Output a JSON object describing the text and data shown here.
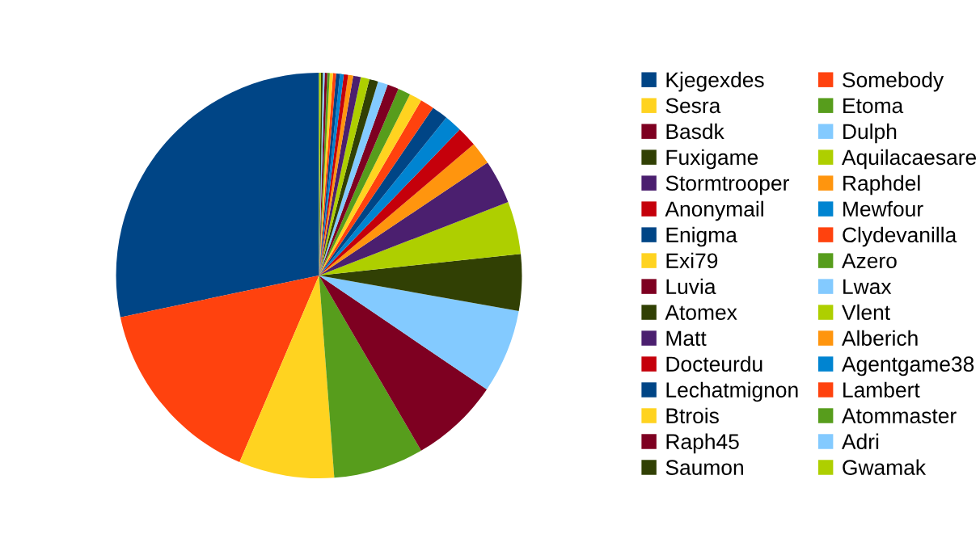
{
  "chart_data": {
    "type": "pie",
    "legend": "right",
    "categories": [
      "Kjegexdes",
      "Somebody",
      "Sesra",
      "Etoma",
      "Basdk",
      "Dulph",
      "Fuxigame",
      "Aquilacaesare",
      "Stormtrooper",
      "Raphdel",
      "Anonymail",
      "Mewfour",
      "Enigma",
      "Clydevanilla",
      "Exi79",
      "Azero",
      "Luvia",
      "Lwax",
      "Atomex",
      "Vlent",
      "Matt",
      "Alberich",
      "Docteurdu",
      "Agentgame38",
      "Lechatmignon",
      "Lambert",
      "Btrois",
      "Atommaster",
      "Raph45",
      "Adri",
      "Saumon",
      "Gwamak"
    ],
    "values": [
      28.3,
      15.3,
      7.6,
      7.2,
      7.1,
      6.7,
      4.5,
      4.2,
      3.5,
      1.8,
      1.6,
      1.4,
      1.3,
      1.1,
      1.0,
      1.0,
      0.9,
      0.8,
      0.7,
      0.7,
      0.6,
      0.4,
      0.35,
      0.3,
      0.3,
      0.25,
      0.25,
      0.2,
      0.2,
      0.15,
      0.15,
      0.15
    ],
    "colors": [
      "#004586",
      "#ff420e",
      "#ffd320",
      "#579d1c",
      "#7e0021",
      "#83caff",
      "#314004",
      "#aecf00",
      "#4b1f6f",
      "#ff950e",
      "#c5000b",
      "#0084d1",
      "#004586",
      "#ff420e",
      "#ffd320",
      "#579d1c",
      "#7e0021",
      "#83caff",
      "#314004",
      "#aecf00",
      "#4b1f6f",
      "#ff950e",
      "#c5000b",
      "#0084d1",
      "#004586",
      "#ff420e",
      "#ffd320",
      "#579d1c",
      "#7e0021",
      "#83caff",
      "#314004",
      "#aecf00"
    ]
  }
}
